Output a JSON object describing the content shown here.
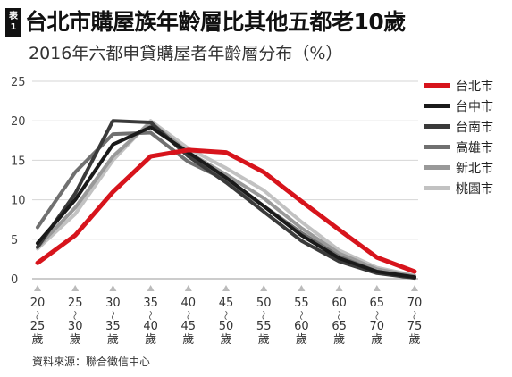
{
  "header": {
    "badge_top": "表",
    "badge_num": "1",
    "title": "台北市購屋族年齡層比其他五都老10歲",
    "subtitle": "2016年六都申貸購屋者年齡層分布（%）"
  },
  "footer": {
    "source": "資料來源：聯合徵信中心"
  },
  "chart_data": {
    "type": "line",
    "title": "台北市購屋族年齡層比其他五都老10歲",
    "subtitle": "2016年六都申貸購屋者年齡層分布（%）",
    "xlabel": "",
    "ylabel": "",
    "categories": [
      {
        "from": "20",
        "to": "25",
        "unit": "歲"
      },
      {
        "from": "25",
        "to": "30",
        "unit": "歲"
      },
      {
        "from": "30",
        "to": "35",
        "unit": "歲"
      },
      {
        "from": "35",
        "to": "40",
        "unit": "歲"
      },
      {
        "from": "40",
        "to": "45",
        "unit": "歲"
      },
      {
        "from": "45",
        "to": "50",
        "unit": "歲"
      },
      {
        "from": "50",
        "to": "55",
        "unit": "歲"
      },
      {
        "from": "55",
        "to": "60",
        "unit": "歲"
      },
      {
        "from": "60",
        "to": "65",
        "unit": "歲"
      },
      {
        "from": "65",
        "to": "70",
        "unit": "歲"
      },
      {
        "from": "70",
        "to": "75",
        "unit": "歲"
      }
    ],
    "ylim": [
      0,
      25
    ],
    "yticks": [
      0,
      5,
      10,
      15,
      20,
      25
    ],
    "grid": true,
    "legend_position": "right",
    "series": [
      {
        "name": "台北市",
        "color": "#d7141c",
        "values": [
          2,
          5.5,
          11,
          15.5,
          16.3,
          16,
          13.5,
          9.8,
          6.2,
          2.7,
          0.9
        ]
      },
      {
        "name": "台中市",
        "color": "#1a1a1a",
        "values": [
          4.5,
          10,
          17,
          19.2,
          16,
          12.8,
          9.2,
          5.5,
          2.6,
          0.9,
          0.2
        ]
      },
      {
        "name": "台南市",
        "color": "#3a3a3a",
        "values": [
          4,
          10.8,
          20,
          19.8,
          15.5,
          12.2,
          8.5,
          4.8,
          2.2,
          0.7,
          0.1
        ]
      },
      {
        "name": "高雄市",
        "color": "#707070",
        "values": [
          6.5,
          13.5,
          18.3,
          18.5,
          14.8,
          12.5,
          9.2,
          5.8,
          2.8,
          0.9,
          0.2
        ]
      },
      {
        "name": "新北市",
        "color": "#999999",
        "values": [
          4,
          9,
          15.5,
          19.8,
          16,
          13.2,
          10.2,
          6.4,
          3.2,
          1.2,
          0.3
        ]
      },
      {
        "name": "桃園市",
        "color": "#c2c2c2",
        "values": [
          3.8,
          8.2,
          15,
          20,
          16.5,
          14,
          11.2,
          7.2,
          3.6,
          1.4,
          0.4
        ]
      }
    ]
  }
}
